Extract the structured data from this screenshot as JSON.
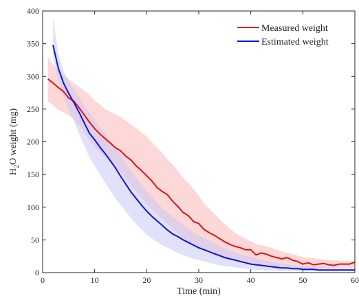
{
  "chart_data": {
    "type": "line",
    "xlabel": "Time (min)",
    "ylabel": {
      "prefix": "H",
      "subscript": "2",
      "suffix": "O weight (mg)"
    },
    "xlim": [
      0,
      60
    ],
    "ylim": [
      0,
      400
    ],
    "xticks": [
      0,
      10,
      20,
      30,
      40,
      50,
      60
    ],
    "yticks": [
      0,
      50,
      100,
      150,
      200,
      250,
      300,
      350,
      400
    ],
    "grid": false,
    "legend_position": "top-right",
    "series": [
      {
        "name": "Measured weight",
        "color": "#e01212",
        "band_color": "#f9b8b8",
        "x": [
          1,
          2,
          3,
          4,
          5,
          6,
          7,
          8,
          9,
          10,
          11,
          12,
          13,
          14,
          15,
          16,
          17,
          18,
          19,
          20,
          21,
          22,
          23,
          24,
          25,
          26,
          27,
          28,
          29,
          30,
          31,
          32,
          33,
          34,
          35,
          36,
          37,
          38,
          39,
          40,
          41,
          42,
          43,
          44,
          45,
          46,
          47,
          48,
          49,
          50,
          51,
          52,
          53,
          54,
          55,
          56,
          57,
          58,
          59,
          60
        ],
        "values": [
          296,
          290,
          283,
          277,
          267,
          262,
          252,
          241,
          230,
          220,
          212,
          205,
          198,
          191,
          186,
          178,
          172,
          163,
          156,
          148,
          140,
          130,
          124,
          119,
          109,
          101,
          92,
          87,
          78,
          75,
          66,
          61,
          57,
          52,
          47,
          43,
          40,
          38,
          35,
          35,
          27,
          30,
          28,
          25,
          23,
          21,
          23,
          19,
          17,
          13,
          15,
          12,
          13,
          14,
          12,
          11,
          13,
          13,
          13,
          16
        ],
        "band_lower": [
          262,
          256,
          249,
          245,
          240,
          235,
          226,
          214,
          203,
          193,
          184,
          176,
          168,
          160,
          153,
          143,
          133,
          124,
          115,
          105,
          97,
          89,
          82,
          74,
          66,
          59,
          52,
          47,
          42,
          38,
          35,
          30,
          26,
          24,
          21,
          20,
          18,
          15,
          15,
          14,
          12,
          12,
          11,
          10,
          9,
          9,
          8,
          8,
          7,
          7,
          7,
          7,
          7,
          7,
          7,
          7,
          7,
          7,
          7,
          7
        ],
        "band_upper": [
          330,
          318,
          309,
          302,
          296,
          290,
          284,
          278,
          272,
          263,
          257,
          250,
          246,
          242,
          238,
          232,
          226,
          221,
          214,
          208,
          199,
          191,
          183,
          173,
          165,
          155,
          145,
          137,
          128,
          118,
          106,
          98,
          90,
          82,
          74,
          67,
          61,
          56,
          52,
          48,
          44,
          42,
          40,
          38,
          35,
          32,
          30,
          28,
          26,
          24,
          23,
          22,
          21,
          20,
          19,
          19,
          18,
          18,
          18,
          18
        ]
      },
      {
        "name": "Estimated weight",
        "color": "#0a14d9",
        "band_color": "#c8c8f4",
        "x": [
          2,
          3,
          4,
          5,
          6,
          7,
          8,
          9,
          10,
          11,
          12,
          13,
          14,
          15,
          16,
          17,
          18,
          19,
          20,
          21,
          22,
          23,
          24,
          25,
          26,
          27,
          28,
          29,
          30,
          31,
          32,
          33,
          34,
          35,
          36,
          37,
          38,
          39,
          40,
          41,
          42,
          43,
          44,
          45,
          46,
          47,
          48,
          49,
          50,
          51,
          52,
          53,
          54,
          55,
          56,
          57,
          58,
          59,
          60
        ],
        "values": [
          348,
          313,
          290,
          274,
          260,
          245,
          229,
          213,
          203,
          192,
          182,
          171,
          160,
          147,
          135,
          123,
          113,
          103,
          94,
          86,
          79,
          72,
          65,
          59,
          55,
          50,
          46,
          42,
          38,
          35,
          32,
          29,
          26,
          23,
          21,
          19,
          17,
          15,
          13,
          12,
          11,
          10,
          9,
          8,
          7,
          7,
          6,
          6,
          5,
          5,
          5,
          4,
          4,
          4,
          4,
          4,
          4,
          4,
          4
        ],
        "band_lower": [
          330,
          296,
          270,
          250,
          232,
          212,
          194,
          176,
          163,
          150,
          138,
          125,
          113,
          103,
          93,
          83,
          74,
          66,
          58,
          52,
          47,
          42,
          38,
          34,
          30,
          27,
          24,
          21,
          19,
          17,
          15,
          13,
          11,
          10,
          9,
          8,
          7,
          6,
          5,
          4,
          4,
          3,
          3,
          3,
          2,
          2,
          2,
          2,
          2,
          2,
          2,
          2,
          2,
          2,
          2,
          2,
          2,
          2,
          2
        ],
        "band_upper": [
          390,
          336,
          308,
          293,
          280,
          268,
          256,
          244,
          233,
          222,
          212,
          201,
          190,
          179,
          168,
          157,
          146,
          135,
          125,
          116,
          107,
          99,
          92,
          85,
          79,
          73,
          67,
          62,
          57,
          53,
          49,
          45,
          41,
          37,
          34,
          31,
          28,
          26,
          24,
          22,
          20,
          18,
          17,
          15,
          14,
          13,
          12,
          11,
          10,
          10,
          9,
          9,
          8,
          8,
          8,
          7,
          7,
          7,
          7
        ]
      }
    ]
  }
}
